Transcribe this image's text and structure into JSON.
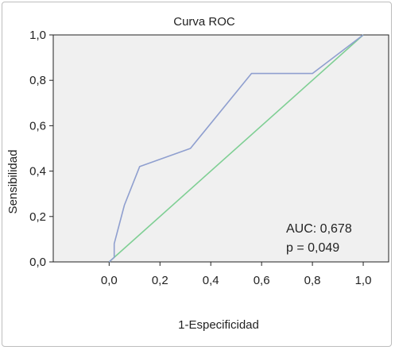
{
  "chart_data": {
    "type": "line",
    "title": "Curva ROC",
    "xlabel": "1-Especificidad",
    "ylabel": "Sensibilidad",
    "xlim": [
      -0.22,
      1.1
    ],
    "ylim": [
      0.0,
      1.0
    ],
    "x_ticks": [
      "0,0",
      "0,2",
      "0,4",
      "0,6",
      "0,8",
      "1,0"
    ],
    "x_tick_values": [
      0.0,
      0.2,
      0.4,
      0.6,
      0.8,
      1.0
    ],
    "y_ticks": [
      "0,0",
      "0,2",
      "0,4",
      "0,6",
      "0,8",
      "1,0"
    ],
    "y_tick_values": [
      0.0,
      0.2,
      0.4,
      0.6,
      0.8,
      1.0
    ],
    "grid": false,
    "series": [
      {
        "color": "#8f9fcf",
        "x": [
          0.0,
          0.02,
          0.02,
          0.06,
          0.12,
          0.32,
          0.56,
          0.8,
          1.0
        ],
        "y": [
          0.0,
          0.02,
          0.08,
          0.25,
          0.42,
          0.5,
          0.83,
          0.83,
          1.0
        ]
      },
      {
        "color": "#7fcf94",
        "x": [
          0.0,
          1.0
        ],
        "y": [
          0.0,
          1.0
        ]
      }
    ],
    "annotations": [
      "AUC: 0,678",
      "p = 0,049"
    ]
  }
}
